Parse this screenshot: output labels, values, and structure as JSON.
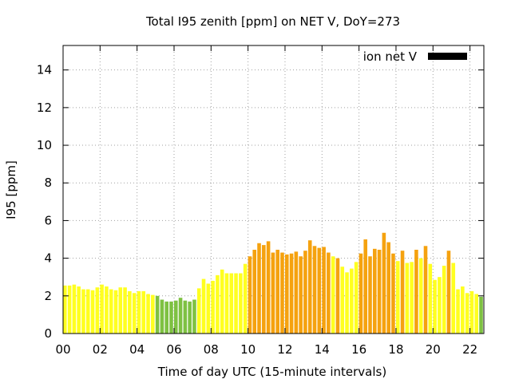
{
  "chart_data": {
    "type": "bar",
    "title": "Total I95 zenith [ppm] on NET V, DoY=273",
    "xlabel": "Time of day UTC (15-minute intervals)",
    "ylabel": "I95 [ppm]",
    "xlim": [
      0,
      22.75
    ],
    "ylim": [
      0,
      15.3
    ],
    "x_ticks": [
      "00",
      "02",
      "04",
      "06",
      "08",
      "10",
      "12",
      "14",
      "16",
      "18",
      "20",
      "22"
    ],
    "y_ticks": [
      "0",
      "2",
      "4",
      "6",
      "8",
      "10",
      "12",
      "14"
    ],
    "grid": true,
    "legend": {
      "position": "top-right",
      "label": "ion net V",
      "color": "#000000"
    },
    "colors": {
      "low": "#ffff20",
      "quiet": "#7ec142",
      "elevated": "#f5a20f"
    },
    "bin_hours": 0.25,
    "values": [
      2.55,
      2.55,
      2.6,
      2.5,
      2.35,
      2.35,
      2.3,
      2.45,
      2.6,
      2.5,
      2.35,
      2.3,
      2.45,
      2.45,
      2.25,
      2.15,
      2.25,
      2.25,
      2.1,
      2.05,
      2.0,
      1.8,
      1.7,
      1.7,
      1.75,
      1.9,
      1.75,
      1.7,
      1.8,
      2.4,
      2.9,
      2.65,
      2.8,
      3.1,
      3.4,
      3.2,
      3.2,
      3.2,
      3.2,
      3.7,
      4.1,
      4.45,
      4.8,
      4.7,
      4.9,
      4.3,
      4.45,
      4.3,
      4.2,
      4.25,
      4.35,
      4.1,
      4.4,
      4.95,
      4.65,
      4.55,
      4.6,
      4.3,
      4.1,
      4.0,
      3.55,
      3.25,
      3.45,
      3.8,
      4.25,
      5.0,
      4.1,
      4.5,
      4.45,
      5.35,
      4.85,
      4.25,
      3.85,
      4.4,
      3.75,
      3.8,
      4.45,
      4.0,
      4.65,
      3.7,
      2.85,
      3.0,
      3.6,
      4.4,
      3.75,
      2.35,
      2.5,
      2.15,
      2.25,
      2.1,
      1.95
    ],
    "levels": [
      "low",
      "low",
      "low",
      "low",
      "low",
      "low",
      "low",
      "low",
      "low",
      "low",
      "low",
      "low",
      "low",
      "low",
      "low",
      "low",
      "low",
      "low",
      "low",
      "low",
      "quiet",
      "quiet",
      "quiet",
      "quiet",
      "quiet",
      "quiet",
      "quiet",
      "quiet",
      "quiet",
      "low",
      "low",
      "low",
      "low",
      "low",
      "low",
      "low",
      "low",
      "low",
      "low",
      "low",
      "elevated",
      "elevated",
      "elevated",
      "elevated",
      "elevated",
      "elevated",
      "elevated",
      "elevated",
      "elevated",
      "elevated",
      "elevated",
      "elevated",
      "elevated",
      "elevated",
      "elevated",
      "elevated",
      "elevated",
      "elevated",
      "low",
      "elevated",
      "low",
      "low",
      "low",
      "low",
      "elevated",
      "elevated",
      "elevated",
      "elevated",
      "elevated",
      "elevated",
      "elevated",
      "elevated",
      "low",
      "elevated",
      "low",
      "low",
      "elevated",
      "low",
      "elevated",
      "low",
      "low",
      "low",
      "low",
      "elevated",
      "low",
      "low",
      "low",
      "low",
      "low",
      "low",
      "quiet"
    ]
  }
}
